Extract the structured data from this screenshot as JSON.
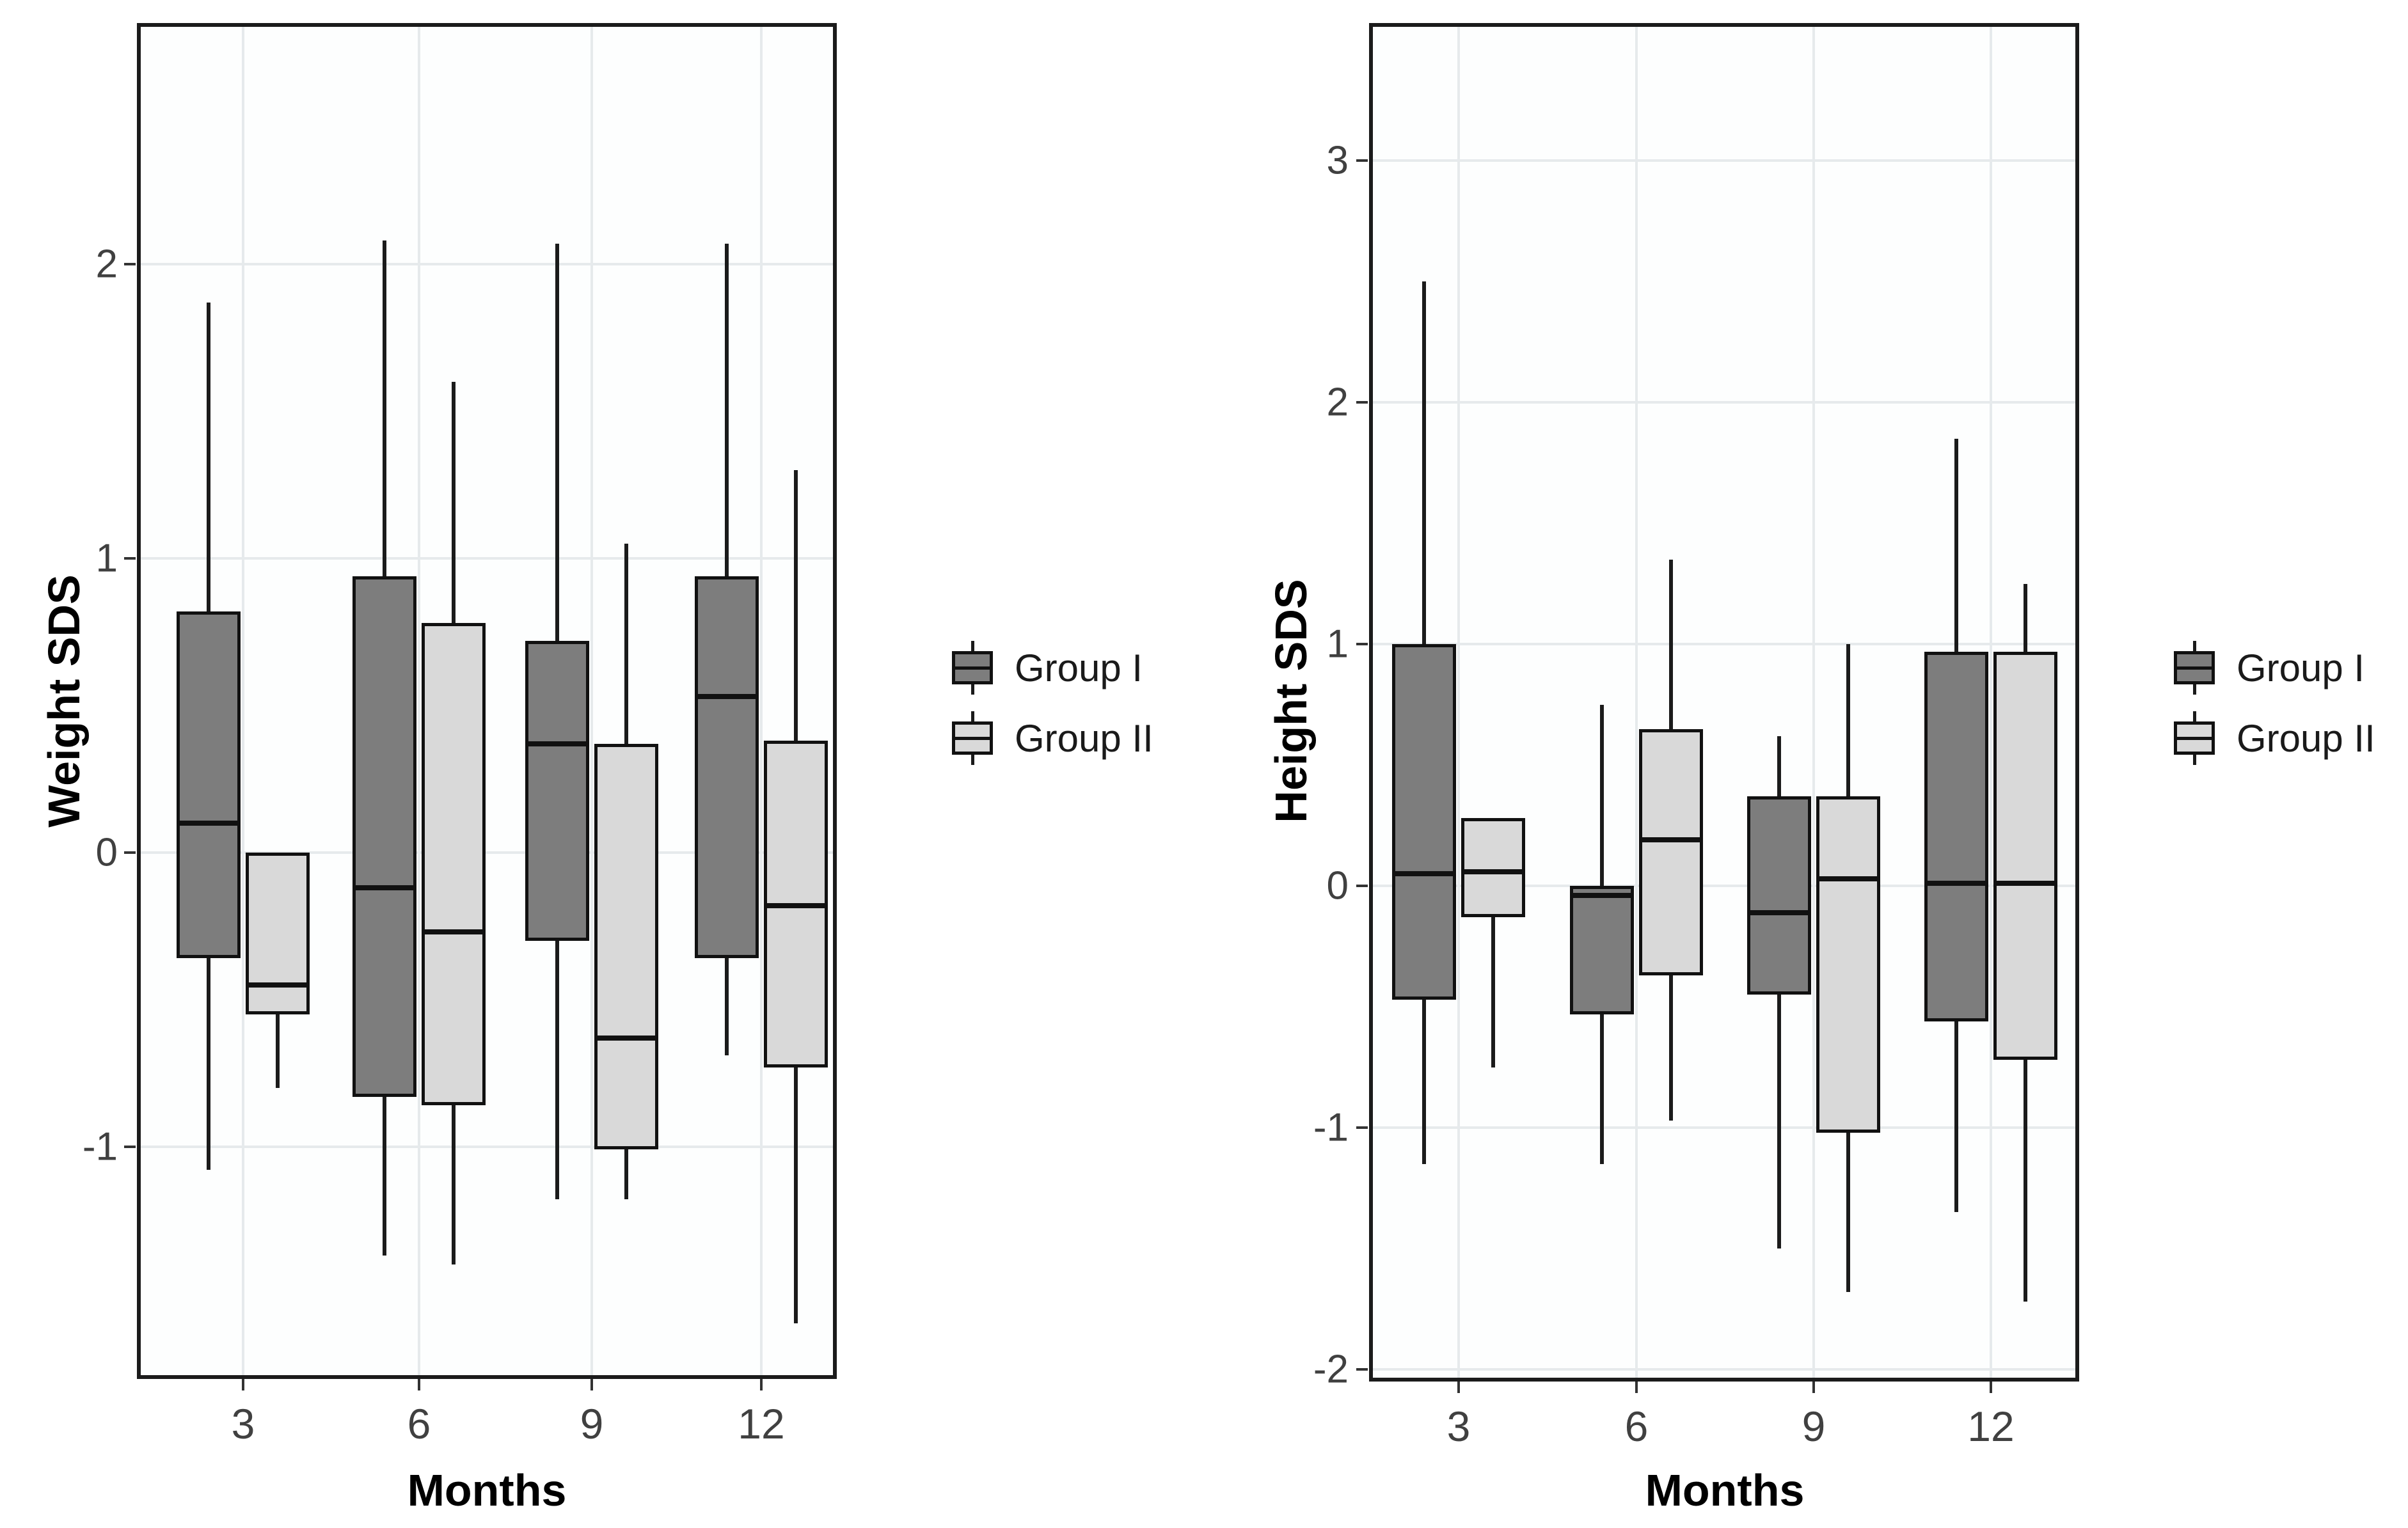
{
  "figure": {
    "background": "#ffffff",
    "legend_entries": [
      "Group I",
      "Group II"
    ],
    "group_colors": {
      "group_i": "#7d7d7d",
      "group_ii": "#d9d9d9"
    },
    "line_color": "#1b1b1b",
    "gridline_color": "#e6eaec"
  },
  "chart_data": [
    {
      "type": "boxplot",
      "title": "",
      "xlabel": "Months",
      "ylabel": "Weight SDS",
      "categories": [
        "3",
        "6",
        "9",
        "12"
      ],
      "yticks": [
        2,
        1,
        0,
        -1
      ],
      "ylim": [
        -1.79,
        2.82
      ],
      "grid": true,
      "legend_position": "right",
      "series": [
        {
          "name": "Group I",
          "color": "#7d7d7d",
          "boxes": [
            {
              "month": "3",
              "min": -1.08,
              "q1": -0.36,
              "median": 0.1,
              "q3": 0.82,
              "max": 1.87
            },
            {
              "month": "6",
              "min": -1.37,
              "q1": -0.83,
              "median": -0.12,
              "q3": 0.94,
              "max": 2.08
            },
            {
              "month": "9",
              "min": -1.18,
              "q1": -0.3,
              "median": 0.37,
              "q3": 0.72,
              "max": 2.07
            },
            {
              "month": "12",
              "min": -0.69,
              "q1": -0.36,
              "median": 0.53,
              "q3": 0.94,
              "max": 2.07
            }
          ]
        },
        {
          "name": "Group II",
          "color": "#d9d9d9",
          "boxes": [
            {
              "month": "3",
              "min": -0.8,
              "q1": -0.55,
              "median": -0.45,
              "q3": 0.0,
              "max": 0.0
            },
            {
              "month": "6",
              "min": -1.4,
              "q1": -0.86,
              "median": -0.27,
              "q3": 0.78,
              "max": 1.6
            },
            {
              "month": "9",
              "min": -1.18,
              "q1": -1.01,
              "median": -0.63,
              "q3": 0.37,
              "max": 1.05
            },
            {
              "month": "12",
              "min": -1.6,
              "q1": -0.73,
              "median": -0.18,
              "q3": 0.38,
              "max": 1.3
            }
          ]
        }
      ]
    },
    {
      "type": "boxplot",
      "title": "",
      "xlabel": "Months",
      "ylabel": "Height SDS",
      "categories": [
        "3",
        "6",
        "9",
        "12"
      ],
      "yticks": [
        3,
        2,
        1,
        0,
        -1,
        -2
      ],
      "ylim": [
        -2.05,
        3.57
      ],
      "grid": true,
      "legend_position": "right",
      "series": [
        {
          "name": "Group I",
          "color": "#7d7d7d",
          "boxes": [
            {
              "month": "3",
              "min": -1.15,
              "q1": -0.47,
              "median": 0.05,
              "q3": 1.0,
              "max": 2.5
            },
            {
              "month": "6",
              "min": -1.15,
              "q1": -0.53,
              "median": -0.04,
              "q3": 0.0,
              "max": 0.75
            },
            {
              "month": "9",
              "min": -1.5,
              "q1": -0.45,
              "median": -0.11,
              "q3": 0.37,
              "max": 0.62
            },
            {
              "month": "12",
              "min": -1.35,
              "q1": -0.56,
              "median": 0.01,
              "q3": 0.97,
              "max": 1.85
            }
          ]
        },
        {
          "name": "Group II",
          "color": "#d9d9d9",
          "boxes": [
            {
              "month": "3",
              "min": -0.75,
              "q1": -0.13,
              "median": 0.06,
              "q3": 0.28,
              "max": 0.28
            },
            {
              "month": "6",
              "min": -0.97,
              "q1": -0.37,
              "median": 0.19,
              "q3": 0.65,
              "max": 1.35
            },
            {
              "month": "9",
              "min": -1.68,
              "q1": -1.02,
              "median": 0.03,
              "q3": 0.37,
              "max": 1.0
            },
            {
              "month": "12",
              "min": -1.72,
              "q1": -0.72,
              "median": 0.01,
              "q3": 0.97,
              "max": 1.25
            }
          ]
        }
      ]
    }
  ]
}
